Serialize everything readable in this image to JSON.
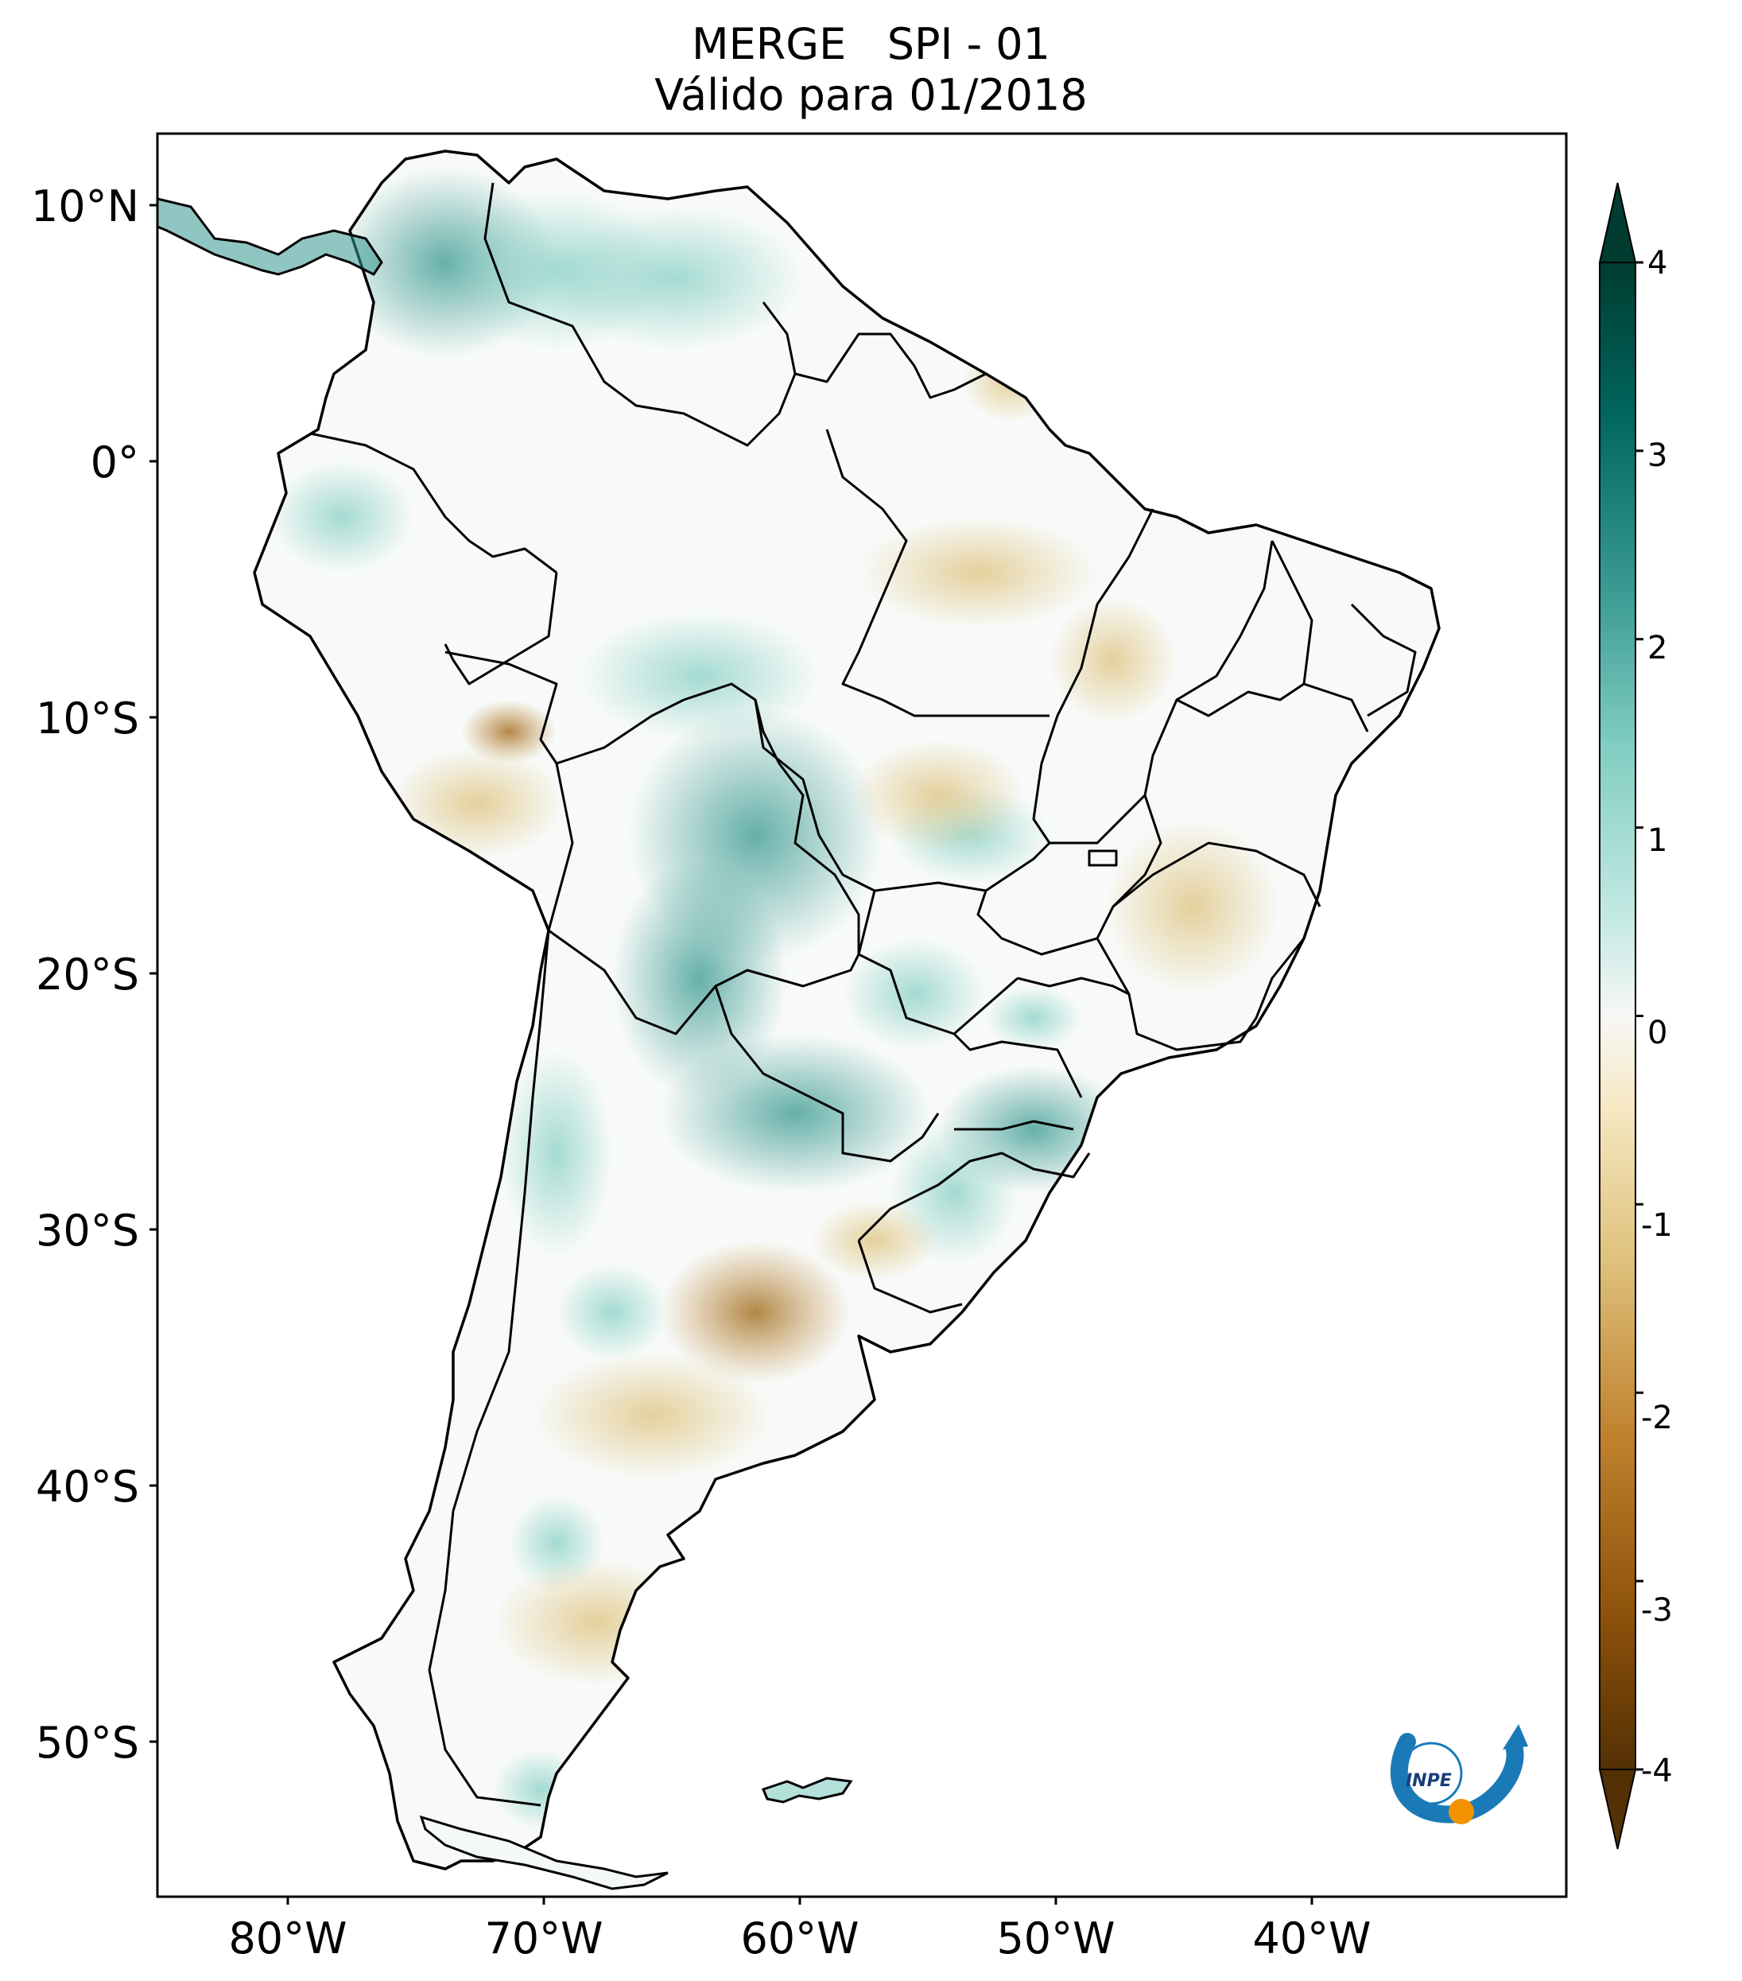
{
  "title": {
    "line1": "MERGE   SPI - 01",
    "line2": "Válido para 01/2018"
  },
  "map": {
    "region": "South America",
    "variable": "SPI - 01",
    "lat_ticks": [
      "10°N",
      "0°",
      "10°S",
      "20°S",
      "30°S",
      "40°S",
      "50°S"
    ],
    "lon_ticks": [
      "80°W",
      "70°W",
      "60°W",
      "50°W",
      "40°W"
    ],
    "lat_values": [
      10,
      0,
      -10,
      -20,
      -30,
      -40,
      -50
    ],
    "lon_values": [
      -80,
      -70,
      -60,
      -50,
      -40
    ]
  },
  "colorbar": {
    "ticks": [
      "4",
      "3",
      "2",
      "1",
      "0",
      "-1",
      "-2",
      "-3",
      "-4"
    ],
    "tick_values": [
      4,
      3,
      2,
      1,
      0,
      -1,
      -2,
      -3,
      -4
    ],
    "colormap": "BrBG",
    "colors": [
      "#543005",
      "#8c510a",
      "#bf812d",
      "#dfc27d",
      "#f6e8c3",
      "#f5f5f5",
      "#c7eae5",
      "#80cdc1",
      "#35978f",
      "#01665e",
      "#003c30"
    ]
  },
  "logo": {
    "text": "INPE",
    "colors": {
      "blue": "#1a7ab8",
      "orange": "#f39200"
    }
  }
}
